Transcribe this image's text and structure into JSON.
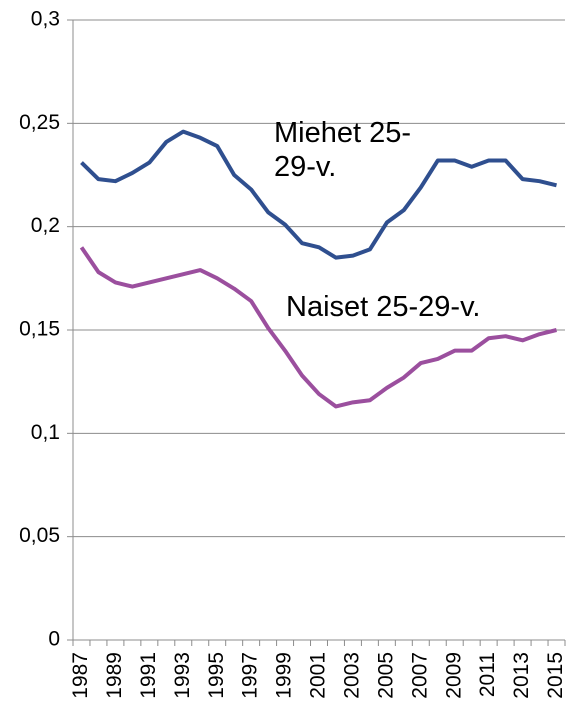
{
  "chart_data": {
    "type": "line",
    "categories": [
      "1987",
      null,
      "1989",
      null,
      "1991",
      null,
      "1993",
      null,
      "1995",
      null,
      "1997",
      null,
      "1999",
      null,
      "2001",
      null,
      "2003",
      null,
      "2005",
      null,
      "2007",
      null,
      "2009",
      null,
      "2011",
      null,
      "2013",
      null,
      "2015"
    ],
    "series": [
      {
        "name": "Miehet 25-29-v.",
        "color": "#2f4f8f",
        "values": [
          0.231,
          0.223,
          0.222,
          0.226,
          0.231,
          0.241,
          0.246,
          0.243,
          0.239,
          0.225,
          0.218,
          0.207,
          0.201,
          0.192,
          0.19,
          0.185,
          0.186,
          0.189,
          0.202,
          0.208,
          0.219,
          0.232,
          0.232,
          0.229,
          0.232,
          0.232,
          0.223,
          0.222,
          0.22
        ]
      },
      {
        "name": "Naiset 25-29-v.",
        "color": "#9b4f9e",
        "values": [
          0.19,
          0.178,
          0.173,
          0.171,
          0.173,
          0.175,
          0.177,
          0.179,
          0.175,
          0.17,
          0.164,
          0.151,
          0.14,
          0.128,
          0.119,
          0.113,
          0.115,
          0.116,
          0.122,
          0.127,
          0.134,
          0.136,
          0.14,
          0.14,
          0.146,
          0.147,
          0.145,
          0.148,
          0.15
        ]
      }
    ],
    "ylim": [
      0,
      0.3
    ],
    "yticks": [
      0,
      {
        "value": 0.05,
        "label": "0,05"
      },
      {
        "value": 0.1,
        "label": "0,1"
      },
      {
        "value": 0.15,
        "label": "0,15"
      },
      {
        "value": 0.2,
        "label": "0,2"
      },
      {
        "value": 0.25,
        "label": "0,25"
      },
      {
        "value": 0.3,
        "label": "0,3"
      }
    ],
    "grid": true
  }
}
